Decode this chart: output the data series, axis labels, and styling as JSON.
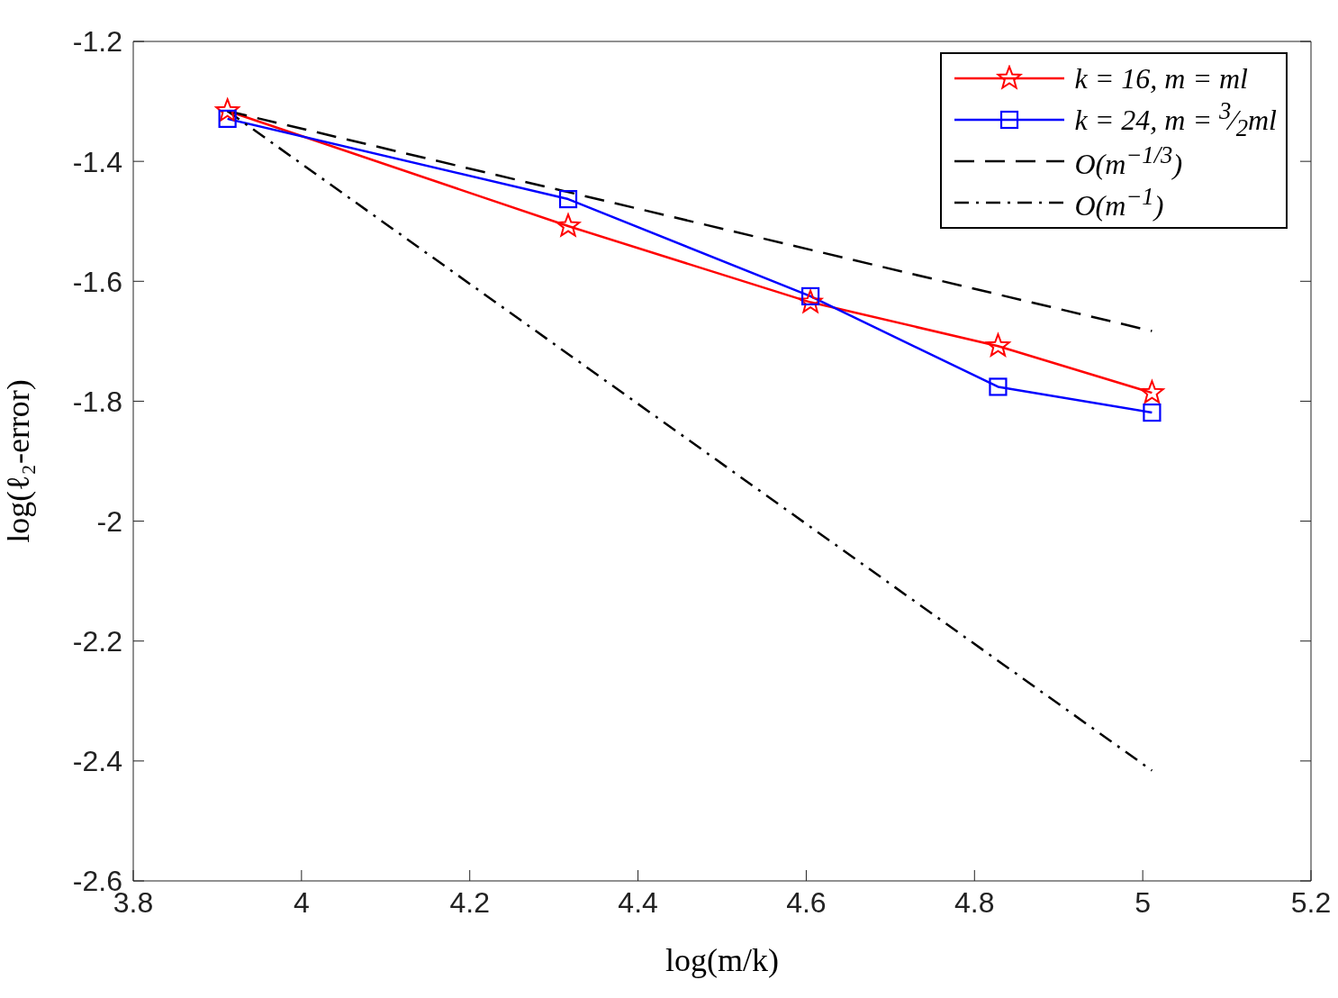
{
  "chart_data": {
    "type": "line",
    "xlabel": "log(m/k)",
    "ylabel": "log(ℓ₂-error)",
    "xlim": [
      3.8,
      5.2
    ],
    "xticks": [
      3.8,
      4,
      4.2,
      4.4,
      4.6,
      4.8,
      5,
      5.2
    ],
    "ylim": [
      -2.6,
      -1.2
    ],
    "yticks": [
      -2.6,
      -2.4,
      -2.2,
      -2,
      -1.8,
      -1.6,
      -1.4,
      -1.2
    ],
    "grid": false,
    "legend": "top right",
    "series": [
      {
        "name": "k = 16, m = ml",
        "color": "#ff0000",
        "marker": "star",
        "line_style": "solid",
        "x": [
          3.912,
          4.317,
          4.605,
          4.828,
          5.011
        ],
        "values": [
          -1.316,
          -1.508,
          -1.635,
          -1.708,
          -1.786
        ]
      },
      {
        "name": "k = 24, m = $^{3}$⁄$_{2}$ml",
        "color": "#0000ff",
        "marker": "square",
        "line_style": "solid",
        "x": [
          3.912,
          4.317,
          4.605,
          4.828,
          5.011
        ],
        "values": [
          -1.329,
          -1.463,
          -1.625,
          -1.776,
          -1.819
        ]
      },
      {
        "name": "O(m$^{−1/3}$)",
        "color": "#000000",
        "marker": "none",
        "line_style": "dashed",
        "x": [
          3.912,
          5.011
        ],
        "values": [
          -1.316,
          -1.683
        ]
      },
      {
        "name": "O(m$^{−1}$)",
        "color": "#000000",
        "marker": "none",
        "line_style": "dashdot",
        "x": [
          3.912,
          5.011
        ],
        "values": [
          -1.316,
          -2.416
        ]
      }
    ]
  }
}
